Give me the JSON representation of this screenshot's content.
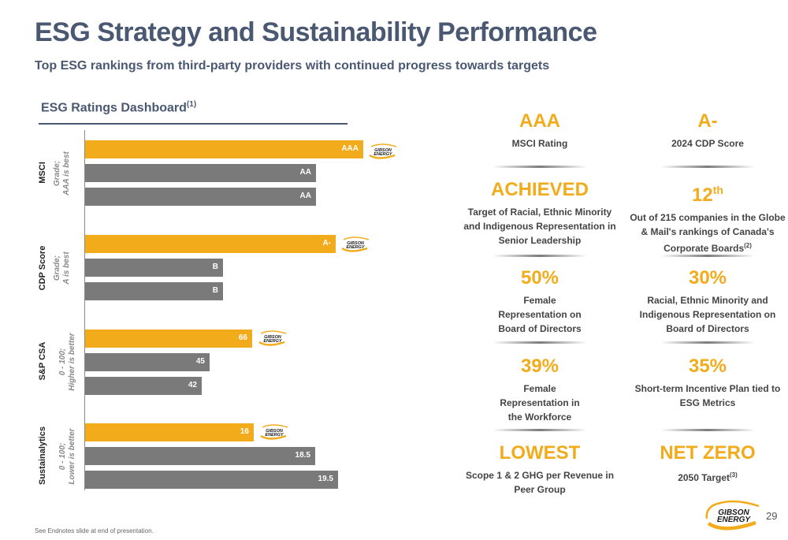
{
  "header": {
    "title": "ESG Strategy and Sustainability Performance",
    "subtitle": "Top ESG rankings from third-party providers with continued progress towards targets"
  },
  "dashboard": {
    "title": "ESG Ratings Dashboard",
    "title_sup": "(1)",
    "groups": [
      {
        "name": "MSCI",
        "note_line1": "Grade;",
        "note_line2": "AAA is best",
        "bars": [
          {
            "label": "AAA",
            "value": "AAA"
          },
          {
            "label": "AA",
            "value": "AA"
          },
          {
            "label": "AA",
            "value": "AA"
          }
        ]
      },
      {
        "name": "CDP Score",
        "note_line1": "Grade;",
        "note_line2": "A is best",
        "bars": [
          {
            "label": "A-",
            "value": "A-"
          },
          {
            "label": "B",
            "value": "B"
          },
          {
            "label": "B",
            "value": "B"
          }
        ]
      },
      {
        "name": "S&P CSA",
        "note_line1": "0 - 100;",
        "note_line2": "Higher is better",
        "bars": [
          {
            "label": "66",
            "value": 66
          },
          {
            "label": "45",
            "value": 45
          },
          {
            "label": "42",
            "value": 42
          }
        ]
      },
      {
        "name": "Sustainalytics",
        "note_line1": "0 - 100;",
        "note_line2": "Lower is better",
        "bars": [
          {
            "label": "16",
            "value": 16
          },
          {
            "label": "18.5",
            "value": 18.5
          },
          {
            "label": "19.5",
            "value": 19.5
          }
        ]
      }
    ],
    "logo_text_1": "GIBSON",
    "logo_text_2": "ENERGY",
    "highlight_color": "#f2ac1b",
    "peer_color": "#7a7a7a"
  },
  "metrics": [
    {
      "big": "AAA",
      "big_sup": "",
      "desc": "MSCI Rating",
      "desc_sup": ""
    },
    {
      "big": "A-",
      "big_sup": "",
      "desc": "2024 CDP Score",
      "desc_sup": ""
    },
    {
      "big": "ACHIEVED",
      "big_sup": "",
      "desc": "Target of Racial, Ethnic Minority and Indigenous Representation in Senior Leadership",
      "desc_sup": ""
    },
    {
      "big": "12",
      "big_sup": "th",
      "desc": "Out of 215 companies in the Globe & Mail's rankings of Canada's Corporate Boards",
      "desc_sup": "(2)"
    },
    {
      "big": "50%",
      "big_sup": "",
      "desc": "Female Representation on Board of Directors",
      "desc_sup": ""
    },
    {
      "big": "30%",
      "big_sup": "",
      "desc": "Racial, Ethnic Minority and Indigenous Representation on Board of Directors",
      "desc_sup": ""
    },
    {
      "big": "39%",
      "big_sup": "",
      "desc": "Female Representation in the Workforce",
      "desc_sup": ""
    },
    {
      "big": "35%",
      "big_sup": "",
      "desc": "Short-term Incentive Plan tied to ESG Metrics",
      "desc_sup": ""
    },
    {
      "big": "LOWEST",
      "big_sup": "",
      "desc": "Scope 1 & 2 GHG per Revenue in Peer Group",
      "desc_sup": ""
    },
    {
      "big": "NET ZERO",
      "big_sup": "",
      "desc": "2050 Target",
      "desc_sup": "(3)"
    }
  ],
  "footer": {
    "footnote": "See Endnotes slide at end of presentation.",
    "page_number": "29",
    "logo_text_1": "GIBSON",
    "logo_text_2": "ENERGY"
  }
}
